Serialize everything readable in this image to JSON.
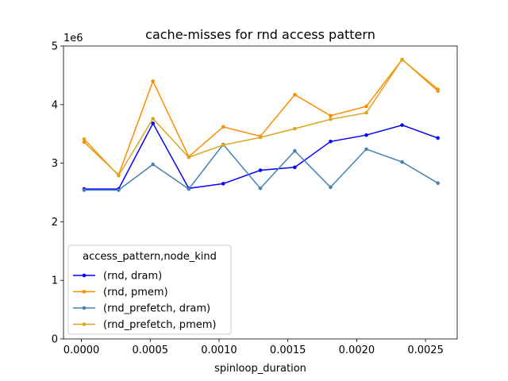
{
  "chart_data": {
    "type": "line",
    "title": "cache-misses for rnd access pattern",
    "xlabel": "spinloop_duration",
    "ylabel": "",
    "y_offset_label": "1e6",
    "xlim": [
      -0.00013,
      0.00273
    ],
    "ylim": [
      0,
      5000000
    ],
    "x_ticks": [
      0.0,
      0.0005,
      0.001,
      0.0015,
      0.002,
      0.0025
    ],
    "x_tick_labels": [
      "0.0000",
      "0.0005",
      "0.0010",
      "0.0015",
      "0.0020",
      "0.0025"
    ],
    "y_ticks": [
      0,
      1000000,
      2000000,
      3000000,
      4000000,
      5000000
    ],
    "y_tick_labels": [
      "0",
      "1",
      "2",
      "3",
      "4",
      "5"
    ],
    "grid": false,
    "legend": {
      "title": "access_pattern,node_kind",
      "placement": "lower-left"
    },
    "x": [
      2e-05,
      0.00027,
      0.00052,
      0.00078,
      0.00103,
      0.0013,
      0.00155,
      0.00181,
      0.00207,
      0.00233,
      0.00259
    ],
    "series": [
      {
        "name": "(rnd, dram)",
        "color": "#0000ff",
        "values": [
          2560000,
          2560000,
          3680000,
          2570000,
          2650000,
          2880000,
          2930000,
          3370000,
          3480000,
          3650000,
          3430000
        ]
      },
      {
        "name": "(rnd, pmem)",
        "color": "#ff8c00",
        "values": [
          3360000,
          2800000,
          4400000,
          3110000,
          3620000,
          3460000,
          4170000,
          3810000,
          3970000,
          4770000,
          4260000
        ]
      },
      {
        "name": "(rnd_prefetch, dram)",
        "color": "#4682b4",
        "values": [
          2540000,
          2540000,
          2980000,
          2560000,
          3320000,
          2570000,
          3210000,
          2590000,
          3240000,
          3020000,
          2660000
        ]
      },
      {
        "name": "(rnd_prefetch, pmem)",
        "color": "#daa520",
        "values": [
          3410000,
          2790000,
          3760000,
          3100000,
          3310000,
          3440000,
          3590000,
          3750000,
          3860000,
          4770000,
          4230000
        ]
      }
    ]
  }
}
